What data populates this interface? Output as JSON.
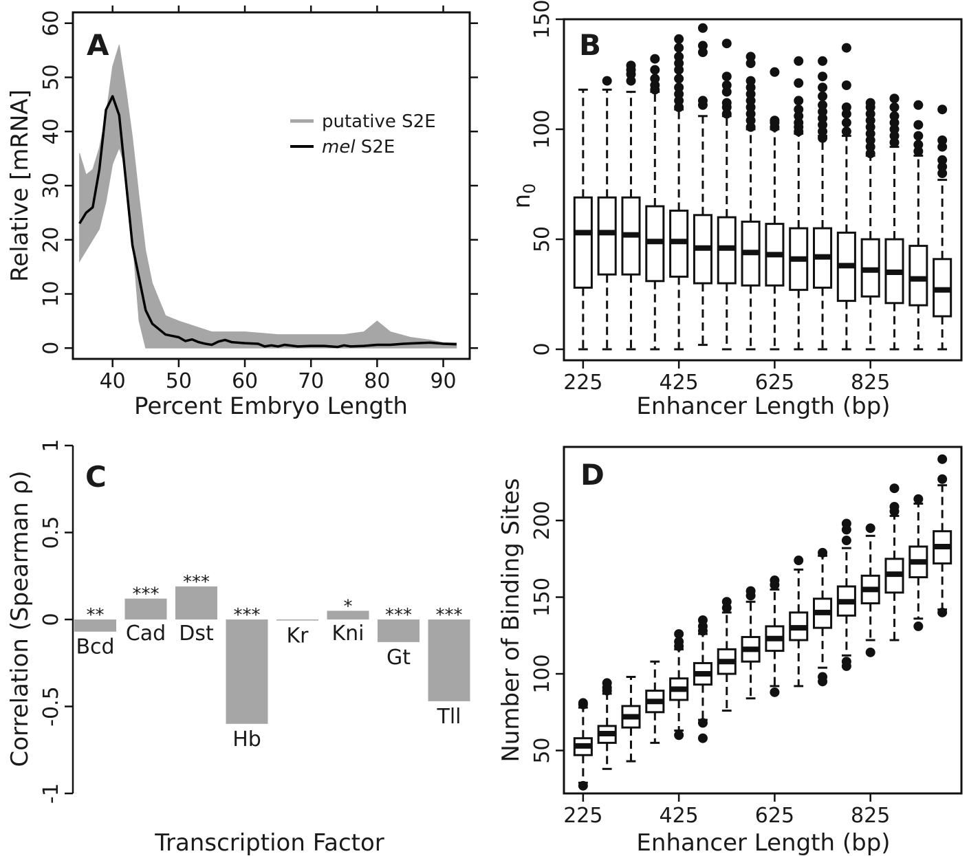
{
  "chart_data": [
    {
      "panel": "A",
      "type": "line",
      "xlabel": "Percent Embryo Length",
      "ylabel": "Relative [mRNA]",
      "xlim": [
        34,
        94
      ],
      "ylim": [
        -2,
        62
      ],
      "xticks": [
        "40",
        "50",
        "60",
        "70",
        "80",
        "90"
      ],
      "yticks": [
        "0",
        "10",
        "20",
        "30",
        "40",
        "50",
        "60"
      ],
      "legend_position": "top-right",
      "series": [
        {
          "name": "putative S2E",
          "color": "#a6a6a6",
          "x": [
            35,
            36,
            37,
            38,
            39,
            40,
            41,
            42,
            43,
            44,
            45,
            46,
            47,
            48,
            50,
            55,
            60,
            65,
            70,
            75,
            78,
            80,
            82,
            85,
            88,
            90,
            92
          ],
          "upper": [
            36,
            32,
            33,
            37,
            43,
            52,
            56,
            48,
            39,
            28,
            18,
            12,
            9,
            6,
            5,
            3,
            3,
            2.5,
            2.5,
            2.5,
            3,
            5,
            3,
            2,
            1.5,
            1,
            1
          ],
          "lower": [
            16,
            18,
            20,
            22,
            27,
            34,
            37,
            33,
            20,
            5,
            0,
            0,
            0,
            0,
            0,
            0,
            0,
            0,
            0,
            0,
            0,
            0,
            0,
            0,
            0,
            0,
            0
          ]
        },
        {
          "name": "mel S2E",
          "name_italic": "mel",
          "name_rest": " S2E",
          "color": "#000000",
          "x": [
            35,
            36,
            37,
            38,
            39,
            40,
            41,
            42,
            43,
            44,
            45,
            46,
            47,
            48,
            50,
            51,
            52,
            53,
            54,
            55,
            56,
            57,
            58,
            60,
            62,
            63,
            64,
            65,
            66,
            68,
            70,
            72,
            74,
            75,
            76,
            78,
            80,
            82,
            84,
            86,
            88,
            90,
            92
          ],
          "y": [
            23,
            25,
            26,
            33,
            44,
            46.5,
            43,
            31,
            19,
            13,
            7,
            4.5,
            3.5,
            2.5,
            2,
            1.3,
            1.6,
            1.1,
            0.8,
            0.6,
            1.2,
            1.5,
            1.1,
            0.9,
            0.8,
            0.3,
            0.5,
            0.3,
            0.6,
            0.3,
            0.4,
            0.4,
            0.2,
            0.5,
            0.3,
            0.4,
            0.6,
            0.6,
            0.8,
            0.9,
            1,
            0.8,
            0.7
          ]
        }
      ]
    },
    {
      "panel": "B",
      "type": "box",
      "xlabel": "Enhancer Length (bp)",
      "ylabel": "n",
      "ylabel_sub": "0",
      "ylim": [
        -5,
        150
      ],
      "yticks": [
        "0",
        "50",
        "100",
        "150"
      ],
      "xtick_labels": [
        "225",
        "425",
        "625",
        "825"
      ],
      "xtick_index": [
        0,
        4,
        8,
        12
      ],
      "boxes": [
        {
          "q1": 28,
          "median": 53,
          "q3": 69,
          "whisker_low": 0,
          "whisker_high": 118,
          "outliers": []
        },
        {
          "q1": 34,
          "median": 53,
          "q3": 69,
          "whisker_low": 0,
          "whisker_high": 118,
          "outliers": [
            122
          ]
        },
        {
          "q1": 34,
          "median": 52,
          "q3": 69,
          "whisker_low": 0,
          "whisker_high": 117,
          "outliers": [
            122,
            125,
            127,
            129
          ]
        },
        {
          "q1": 31,
          "median": 49,
          "q3": 65,
          "whisker_low": 0,
          "whisker_high": 117,
          "outliers": [
            118,
            120,
            123,
            127,
            132
          ]
        },
        {
          "q1": 33,
          "median": 49,
          "q3": 63,
          "whisker_low": 0,
          "whisker_high": 109,
          "outliers": [
            110,
            113,
            116,
            119,
            123,
            127,
            130,
            133,
            137,
            141
          ]
        },
        {
          "q1": 30,
          "median": 46,
          "q3": 61,
          "whisker_low": 2,
          "whisker_high": 106,
          "outliers": [
            111,
            113,
            135,
            138,
            146
          ]
        },
        {
          "q1": 30,
          "median": 46,
          "q3": 60,
          "whisker_low": 0,
          "whisker_high": 106,
          "outliers": [
            107,
            110,
            112,
            117,
            120,
            124,
            139
          ]
        },
        {
          "q1": 29,
          "median": 44,
          "q3": 58,
          "whisker_low": 0,
          "whisker_high": 100,
          "outliers": [
            101,
            104,
            107,
            110,
            113,
            116,
            119,
            122,
            130,
            133
          ]
        },
        {
          "q1": 29,
          "median": 43,
          "q3": 57,
          "whisker_low": 0,
          "whisker_high": 100,
          "outliers": [
            101,
            103,
            104,
            126
          ]
        },
        {
          "q1": 27,
          "median": 41,
          "q3": 55,
          "whisker_low": 0,
          "whisker_high": 98,
          "outliers": [
            99,
            101,
            103,
            106,
            109,
            113,
            121,
            131
          ]
        },
        {
          "q1": 28,
          "median": 42,
          "q3": 55,
          "whisker_low": 0,
          "whisker_high": 97,
          "outliers": [
            96,
            99,
            102,
            105,
            108,
            111,
            115,
            119,
            124,
            131
          ]
        },
        {
          "q1": 22,
          "median": 38,
          "q3": 53,
          "whisker_low": 0,
          "whisker_high": 97,
          "outliers": [
            99,
            103,
            107,
            110,
            120,
            137
          ]
        },
        {
          "q1": 24,
          "median": 36,
          "q3": 50,
          "whisker_low": 0,
          "whisker_high": 88,
          "outliers": [
            89,
            92,
            95,
            98,
            101,
            104,
            107,
            110,
            112
          ]
        },
        {
          "q1": 21,
          "median": 35,
          "q3": 50,
          "whisker_low": 0,
          "whisker_high": 92,
          "outliers": [
            94,
            97,
            100,
            103,
            106,
            110,
            114
          ]
        },
        {
          "q1": 20,
          "median": 32,
          "q3": 47,
          "whisker_low": 0,
          "whisker_high": 88,
          "outliers": [
            90,
            93,
            97,
            102,
            111
          ]
        },
        {
          "q1": 15,
          "median": 27,
          "q3": 41,
          "whisker_low": 0,
          "whisker_high": 77,
          "outliers": [
            80,
            83,
            86,
            92,
            95,
            109
          ]
        }
      ]
    },
    {
      "panel": "C",
      "type": "bar",
      "xlabel": "Transcription Factor",
      "ylabel": "Correlation (Spearman ρ)",
      "ylim": [
        -1,
        1
      ],
      "yticks": [
        "1",
        "0.5",
        "0",
        "-0.5",
        "-1"
      ],
      "categories": [
        "Bcd",
        "Cad",
        "Dst",
        "Hb",
        "Kr",
        "Kni",
        "Gt",
        "Tll"
      ],
      "values": [
        -0.07,
        0.12,
        0.19,
        -0.6,
        -0.005,
        0.05,
        -0.13,
        -0.47
      ],
      "significance": [
        "**",
        "***",
        "***",
        "***",
        "",
        "*",
        "***",
        "***"
      ],
      "color": "#a6a6a6"
    },
    {
      "panel": "D",
      "type": "box",
      "xlabel": "Enhancer Length (bp)",
      "ylabel": "Number of Binding Sites",
      "ylim": [
        22,
        248
      ],
      "yticks": [
        "50",
        "100",
        "150",
        "200"
      ],
      "xtick_labels": [
        "225",
        "425",
        "625",
        "825"
      ],
      "xtick_index": [
        0,
        4,
        8,
        12
      ],
      "boxes": [
        {
          "q1": 47,
          "median": 53,
          "q3": 58,
          "whisker_low": 29,
          "whisker_high": 78,
          "outliers": [
            27,
            80,
            81
          ]
        },
        {
          "q1": 55,
          "median": 61,
          "q3": 66,
          "whisker_low": 38,
          "whisker_high": 87,
          "outliers": [
            89,
            91,
            94
          ]
        },
        {
          "q1": 65,
          "median": 72,
          "q3": 79,
          "whisker_low": 43,
          "whisker_high": 98,
          "outliers": []
        },
        {
          "q1": 75,
          "median": 82,
          "q3": 89,
          "whisker_low": 55,
          "whisker_high": 108,
          "outliers": []
        },
        {
          "q1": 83,
          "median": 90,
          "q3": 97,
          "whisker_low": 63,
          "whisker_high": 116,
          "outliers": [
            60,
            118,
            121,
            126
          ]
        },
        {
          "q1": 93,
          "median": 100,
          "q3": 107,
          "whisker_low": 70,
          "whisker_high": 126,
          "outliers": [
            58,
            68,
            128,
            131,
            135
          ]
        },
        {
          "q1": 100,
          "median": 108,
          "q3": 116,
          "whisker_low": 76,
          "whisker_high": 140,
          "outliers": [
            143,
            147
          ]
        },
        {
          "q1": 108,
          "median": 116,
          "q3": 124,
          "whisker_low": 84,
          "whisker_high": 147,
          "outliers": [
            151,
            154
          ]
        },
        {
          "q1": 115,
          "median": 123,
          "q3": 131,
          "whisker_low": 92,
          "whisker_high": 155,
          "outliers": [
            88,
            158,
            161
          ]
        },
        {
          "q1": 122,
          "median": 130,
          "q3": 140,
          "whisker_low": 92,
          "whisker_high": 168,
          "outliers": [
            174
          ]
        },
        {
          "q1": 130,
          "median": 140,
          "q3": 149,
          "whisker_low": 104,
          "whisker_high": 177,
          "outliers": [
            95,
            98,
            179
          ]
        },
        {
          "q1": 138,
          "median": 147,
          "q3": 157,
          "whisker_low": 112,
          "whisker_high": 182,
          "outliers": [
            105,
            108,
            187,
            194,
            198
          ]
        },
        {
          "q1": 146,
          "median": 155,
          "q3": 164,
          "whisker_low": 122,
          "whisker_high": 190,
          "outliers": [
            114,
            195
          ]
        },
        {
          "q1": 153,
          "median": 165,
          "q3": 175,
          "whisker_low": 122,
          "whisker_high": 203,
          "outliers": [
            206,
            209,
            221
          ]
        },
        {
          "q1": 163,
          "median": 173,
          "q3": 183,
          "whisker_low": 136,
          "whisker_high": 211,
          "outliers": [
            131,
            214
          ]
        },
        {
          "q1": 172,
          "median": 183,
          "q3": 193,
          "whisker_low": 142,
          "whisker_high": 223,
          "outliers": [
            140,
            227,
            240
          ]
        }
      ]
    }
  ]
}
